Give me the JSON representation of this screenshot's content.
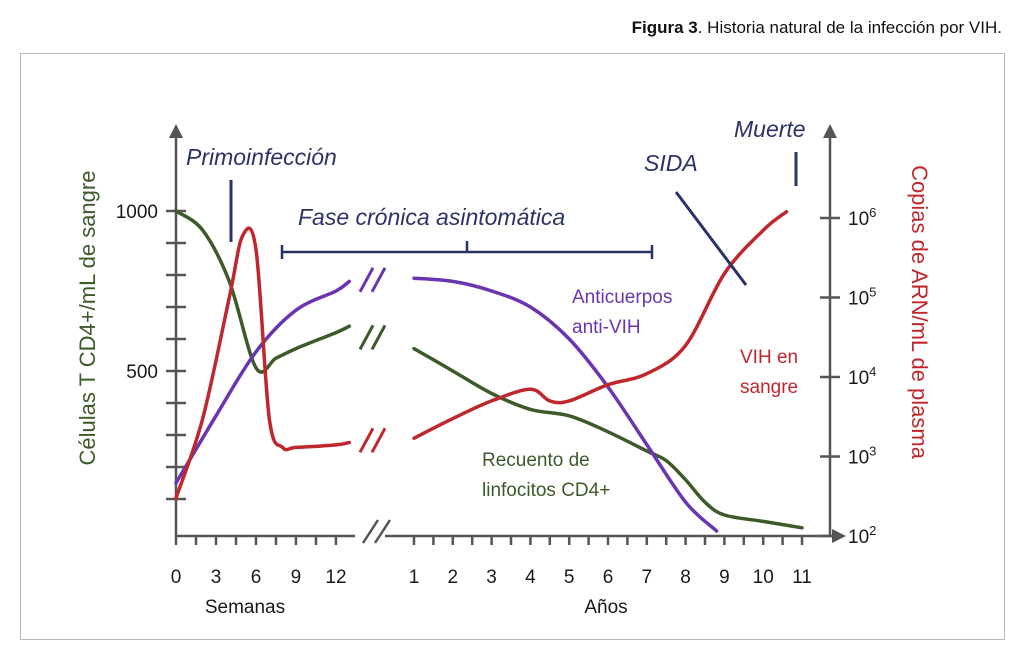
{
  "caption": {
    "bold": "Figura 3",
    "text": ". Historia natural de la infección por VIH."
  },
  "colors": {
    "cd4": "#3d5a2a",
    "antibodies": "#6a35b0",
    "rna": "#c0272d",
    "phase": "#2c3268",
    "axis": "#555555"
  },
  "chart_data": {
    "type": "line",
    "title": "Historia natural de la infección por VIH",
    "x_axis": {
      "segments": [
        {
          "name": "Semanas",
          "ticks": [
            "0",
            "3",
            "6",
            "9",
            "12"
          ],
          "range": [
            0,
            12
          ]
        },
        {
          "name": "Años",
          "ticks": [
            "1",
            "2",
            "3",
            "4",
            "5",
            "6",
            "7",
            "8",
            "9",
            "10",
            "11"
          ],
          "range": [
            1,
            11
          ]
        }
      ],
      "break_between_segments": true
    },
    "left_axis": {
      "label": "Células T CD4+/mL de sangre",
      "ticks": [
        "1000",
        "500"
      ],
      "range": [
        0,
        1000
      ]
    },
    "right_axis": {
      "label": "Copias de ARN/mL de plasma",
      "scale": "log",
      "ticks": [
        {
          "base": "10",
          "exp": "6"
        },
        {
          "base": "10",
          "exp": "5"
        },
        {
          "base": "10",
          "exp": "4"
        },
        {
          "base": "10",
          "exp": "3"
        },
        {
          "base": "10",
          "exp": "2"
        }
      ],
      "range": [
        100,
        1000000
      ]
    },
    "series": [
      {
        "name": "Recuento de linfocitos CD4+",
        "label_lines": [
          "Recuento de",
          "linfocitos CD4+"
        ],
        "axis": "left",
        "weeks": {
          "x": [
            0,
            2,
            4,
            6,
            7.5,
            9,
            12,
            13
          ],
          "y": [
            1000,
            940,
            780,
            510,
            540,
            570,
            620,
            640
          ]
        },
        "years": {
          "x": [
            1,
            2,
            3,
            4,
            5,
            6,
            7,
            7.5,
            8,
            8.5,
            9,
            10,
            11
          ],
          "y": [
            570,
            500,
            430,
            380,
            360,
            310,
            250,
            220,
            160,
            90,
            50,
            30,
            10
          ]
        }
      },
      {
        "name": "Anticuerpos anti-VIH",
        "label_lines": [
          "Anticuerpos",
          "anti-VIH"
        ],
        "axis": "left",
        "weeks": {
          "x": [
            0,
            3,
            6,
            9,
            12,
            13
          ],
          "y": [
            150,
            360,
            560,
            690,
            750,
            780
          ]
        },
        "years": {
          "x": [
            1,
            2,
            3,
            4,
            5,
            6,
            7,
            8,
            8.8
          ],
          "y": [
            790,
            780,
            750,
            700,
            600,
            450,
            270,
            90,
            0
          ]
        }
      },
      {
        "name": "VIH en sangre",
        "label_lines": [
          "VIH en",
          "sangre"
        ],
        "axis": "right",
        "weeks": {
          "x": [
            0,
            2,
            4,
            5,
            6,
            7,
            8,
            9,
            12,
            13
          ],
          "y": [
            300,
            3000,
            100000,
            600000,
            400000,
            3000,
            1300,
            1300,
            1400,
            1500
          ]
        },
        "years": {
          "x": [
            1,
            2,
            3,
            4,
            4.5,
            5,
            6,
            7,
            8,
            9,
            10,
            10.6
          ],
          "y": [
            1700,
            3000,
            5000,
            7000,
            5000,
            5000,
            8000,
            11000,
            25000,
            200000,
            700000,
            1200000
          ]
        }
      }
    ],
    "phases": [
      {
        "name": "Primoinfección",
        "position": "early weeks"
      },
      {
        "name": "Fase crónica asintomática",
        "position": "weeks 9 to year 7"
      },
      {
        "name": "SIDA",
        "position": "years 9–10"
      },
      {
        "name": "Muerte",
        "position": "year ~10.6"
      }
    ]
  }
}
